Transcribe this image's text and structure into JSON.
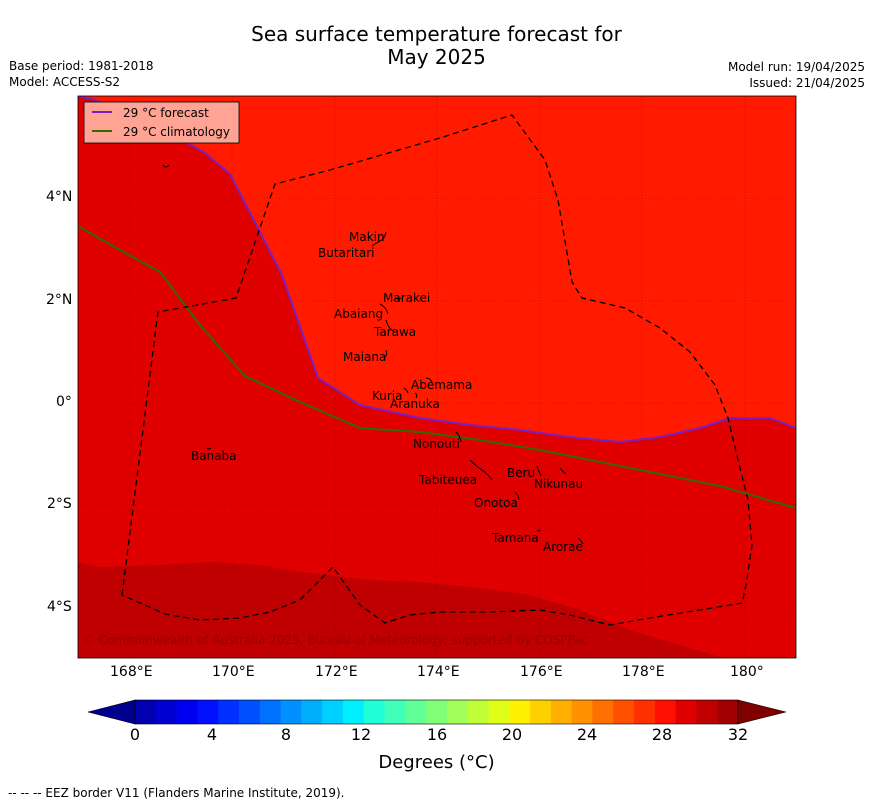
{
  "title_line1": "Sea surface temperature forecast for",
  "title_line2": "May 2025",
  "left_meta": {
    "base_period": "Base period: 1981-2018",
    "model": "Model: ACCESS-S2"
  },
  "right_meta": {
    "model_run": "Model run: 19/04/2025",
    "issued": "Issued: 21/04/2025"
  },
  "legend": [
    {
      "label": "29 °C  forecast",
      "color": "#7a1fc2"
    },
    {
      "label": "29 °C  climatology",
      "color": "#2e6b00"
    }
  ],
  "lat_ticks": [
    "4°N",
    "2°N",
    "0°",
    "2°S",
    "4°S"
  ],
  "lon_ticks": [
    "168°E",
    "170°E",
    "172°E",
    "174°E",
    "176°E",
    "178°E",
    "180°"
  ],
  "islands": [
    {
      "name": "Makin"
    },
    {
      "name": "Butaritari"
    },
    {
      "name": "Marakei"
    },
    {
      "name": "Abaiang"
    },
    {
      "name": "Tarawa"
    },
    {
      "name": "Maiana"
    },
    {
      "name": "Abemama"
    },
    {
      "name": "Kuria"
    },
    {
      "name": "Aranuka"
    },
    {
      "name": "Nonouti"
    },
    {
      "name": "Banaba"
    },
    {
      "name": "Beru"
    },
    {
      "name": "Tabiteuea"
    },
    {
      "name": "Nikunau"
    },
    {
      "name": "Onotoa"
    },
    {
      "name": "Tamana"
    },
    {
      "name": "Arorae"
    }
  ],
  "copyright": "© Commonwealth of Australia 2025, Bureau of Meteorology, supported by COSPPac",
  "colorbar": {
    "ticks": [
      "0",
      "4",
      "8",
      "12",
      "16",
      "20",
      "24",
      "28",
      "32"
    ],
    "label": "Degrees (°C)",
    "colors": [
      "#00008f",
      "#0000b0",
      "#0000d0",
      "#0000f0",
      "#0010ff",
      "#0030ff",
      "#0050ff",
      "#0070ff",
      "#0090ff",
      "#00b0ff",
      "#00d0ff",
      "#00f0ff",
      "#20ffd8",
      "#40ffb8",
      "#60ff98",
      "#80ff78",
      "#a0ff58",
      "#c0ff38",
      "#e0ff18",
      "#fff000",
      "#ffd000",
      "#ffb000",
      "#ff9000",
      "#ff7000",
      "#ff5000",
      "#ff3000",
      "#ff1000",
      "#e00000",
      "#c00000",
      "#a00000",
      "#800000"
    ]
  },
  "footer": "--  --  -- EEZ border V11 (Flanders Marine Institute, 2019)."
}
